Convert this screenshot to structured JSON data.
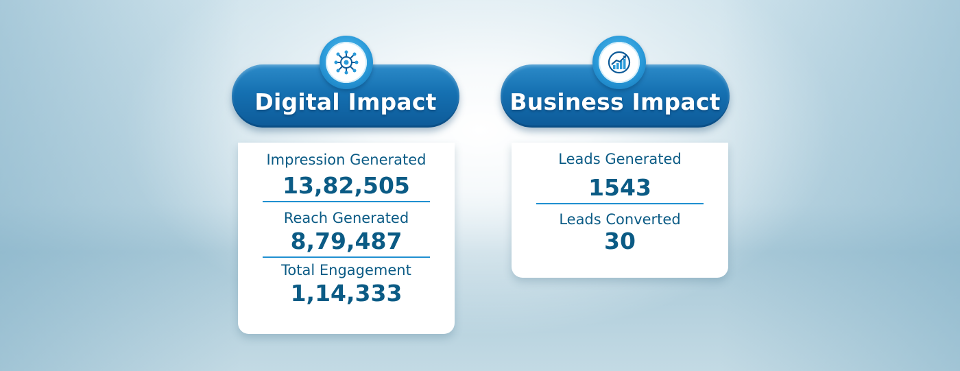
{
  "digital": {
    "title": "Digital Impact",
    "icon": "network-icon",
    "metrics": [
      {
        "label": "Impression Generated",
        "value": "13,82,505"
      },
      {
        "label": "Reach Generated",
        "value": "8,79,487"
      },
      {
        "label": "Total Engagement",
        "value": "1,14,333"
      }
    ]
  },
  "business": {
    "title": "Business Impact",
    "icon": "growth-chart-icon",
    "metrics": [
      {
        "label": "Leads Generated",
        "value": "1543"
      },
      {
        "label": "Leads Converted",
        "value": "30"
      }
    ]
  },
  "colors": {
    "accent": "#1570b1",
    "text": "#0b5b85",
    "divider": "#1f8fd0"
  }
}
